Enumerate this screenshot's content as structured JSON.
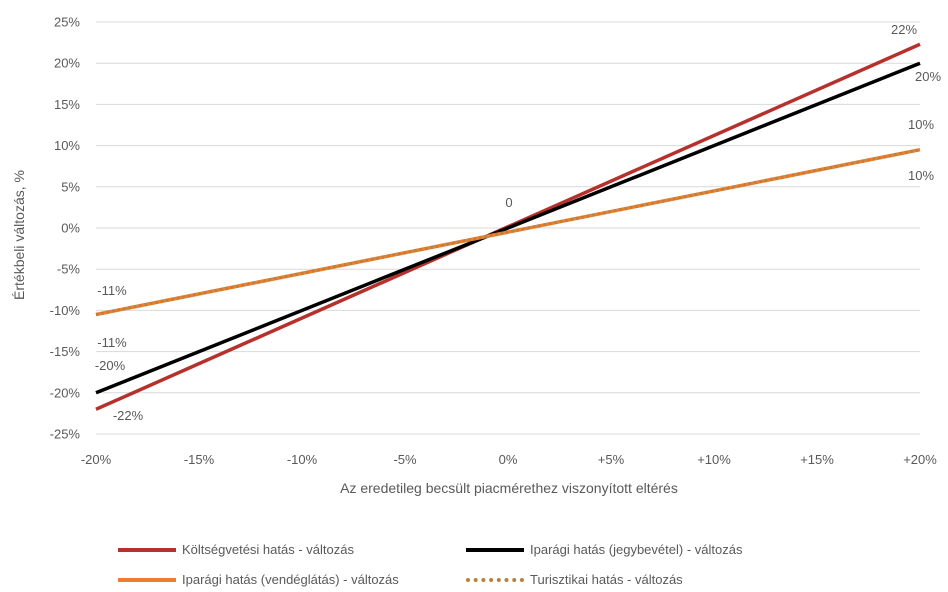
{
  "chart_data": {
    "type": "line",
    "xlabel": "Az eredetileg becsült piacmérethez viszonyított eltérés",
    "ylabel": "Értékbeli változás, %",
    "x": [
      -20,
      20
    ],
    "x_tick_labels": [
      "-20%",
      "-15%",
      "-10%",
      "-5%",
      "0%",
      "+5%",
      "+10%",
      "+15%",
      "+20%"
    ],
    "y_tick_labels": [
      "25%",
      "20%",
      "15%",
      "10%",
      "5%",
      "0%",
      "-5%",
      "-10%",
      "-15%",
      "-20%",
      "-25%"
    ],
    "xlim": [
      -20,
      20
    ],
    "ylim": [
      -25,
      25
    ],
    "grid": "horizontal",
    "legend_position": "bottom",
    "series": [
      {
        "name": "Költségvetési hatás - változás",
        "values": [
          -22,
          22.3
        ],
        "color": "#b7312c",
        "style": "solid"
      },
      {
        "name": "Iparági hatás (jegybevétel) - változás",
        "values": [
          -20,
          20
        ],
        "color": "#000000",
        "style": "solid"
      },
      {
        "name": "Iparági hatás (vendéglátás) - változás",
        "values": [
          -10.5,
          9.5
        ],
        "color": "#ed7d31",
        "style": "solid"
      },
      {
        "name": "Turisztikai hatás - változás",
        "values": [
          -10.5,
          9.5
        ],
        "color": "#b8823a",
        "style": "dotted"
      }
    ],
    "data_labels": [
      "22%",
      "20%",
      "10%",
      "10%",
      "0",
      "-11%",
      "-11%",
      "-20%",
      "-22%"
    ]
  }
}
